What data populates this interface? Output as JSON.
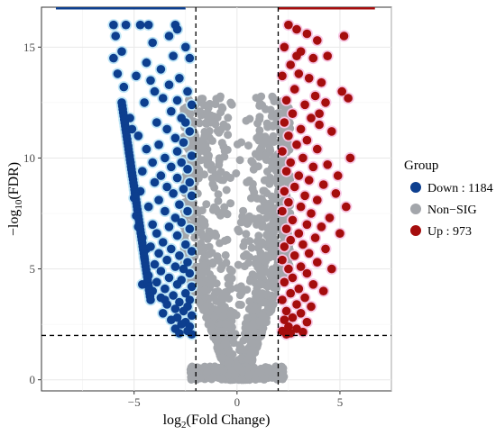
{
  "chart_data": {
    "type": "scatter",
    "title": "",
    "xlabel_main": "log",
    "xlabel_sub": "2",
    "xlabel_rest": "(Fold Change)",
    "ylabel_prefix": "−log",
    "ylabel_sub": "10",
    "ylabel_rest": "(FDR)",
    "xlim": [
      -9.5,
      7.5
    ],
    "ylim": [
      -0.5,
      16.8
    ],
    "x_ticks": [
      -5,
      0,
      5
    ],
    "x_tick_labels": [
      "−5",
      "0",
      "5"
    ],
    "y_ticks": [
      0,
      5,
      10,
      15
    ],
    "y_tick_labels": [
      "0",
      "5",
      "10",
      "15"
    ],
    "thresholds": {
      "log2fc": [
        -2,
        2
      ],
      "neg_log10_fdr": 2
    },
    "legend": {
      "title": "Group",
      "position": "right",
      "entries": [
        {
          "label": "Down : 1184",
          "color": "#0d3f8f"
        },
        {
          "label": "Non−SIG",
          "color": "#a3a6ab"
        },
        {
          "label": "Up : 973",
          "color": "#a50d0d"
        }
      ]
    },
    "series": [
      {
        "name": "Down : 1184",
        "color": "#0d3f8f",
        "halo": "#bfe6f7",
        "points": [
          [
            -6.0,
            16.0
          ],
          [
            -5.4,
            16.0
          ],
          [
            -4.7,
            16.0
          ],
          [
            -4.3,
            16.0
          ],
          [
            -3.0,
            16.0
          ],
          [
            -2.9,
            15.8
          ],
          [
            -5.9,
            15.5
          ],
          [
            -4.1,
            15.2
          ],
          [
            -3.3,
            15.5
          ],
          [
            -2.5,
            15.0
          ],
          [
            -6.0,
            14.5
          ],
          [
            -5.6,
            14.8
          ],
          [
            -4.4,
            14.3
          ],
          [
            -3.7,
            14.0
          ],
          [
            -3.1,
            14.6
          ],
          [
            -2.3,
            14.5
          ],
          [
            -5.8,
            13.8
          ],
          [
            -4.9,
            13.7
          ],
          [
            -4.2,
            13.5
          ],
          [
            -2.8,
            13.6
          ],
          [
            -5.5,
            13.2
          ],
          [
            -4.0,
            13.0
          ],
          [
            -3.3,
            13.3
          ],
          [
            -2.4,
            13.0
          ],
          [
            -3.6,
            12.7
          ],
          [
            -2.9,
            12.6
          ],
          [
            -2.2,
            12.4
          ],
          [
            -4.5,
            12.5
          ],
          [
            -3.2,
            12.1
          ],
          [
            -2.7,
            11.8
          ],
          [
            -5.2,
            11.8
          ],
          [
            -3.9,
            11.6
          ],
          [
            -2.5,
            11.6
          ],
          [
            -5.1,
            11.3
          ],
          [
            -3.4,
            11.3
          ],
          [
            -2.3,
            11.2
          ],
          [
            -4.8,
            11.0
          ],
          [
            -3.0,
            10.9
          ],
          [
            -2.6,
            10.7
          ],
          [
            -3.8,
            10.6
          ],
          [
            -4.4,
            10.4
          ],
          [
            -2.9,
            10.3
          ],
          [
            -2.2,
            10.1
          ],
          [
            -3.5,
            10.0
          ],
          [
            -4.1,
            9.8
          ],
          [
            -2.7,
            9.8
          ],
          [
            -3.2,
            9.6
          ],
          [
            -2.4,
            9.5
          ],
          [
            -4.6,
            9.4
          ],
          [
            -3.7,
            9.2
          ],
          [
            -2.9,
            9.1
          ],
          [
            -2.3,
            8.9
          ],
          [
            -4.0,
            8.9
          ],
          [
            -3.4,
            8.7
          ],
          [
            -2.6,
            8.6
          ],
          [
            -4.7,
            8.5
          ],
          [
            -3.1,
            8.4
          ],
          [
            -2.2,
            8.3
          ],
          [
            -3.8,
            8.1
          ],
          [
            -2.8,
            7.9
          ],
          [
            -4.3,
            7.8
          ],
          [
            -3.5,
            7.6
          ],
          [
            -2.4,
            7.6
          ],
          [
            -4.9,
            7.4
          ],
          [
            -3.0,
            7.3
          ],
          [
            -2.7,
            7.1
          ],
          [
            -4.1,
            7.0
          ],
          [
            -3.3,
            6.9
          ],
          [
            -2.3,
            6.8
          ],
          [
            -3.9,
            6.6
          ],
          [
            -2.9,
            6.5
          ],
          [
            -4.6,
            6.4
          ],
          [
            -3.6,
            6.2
          ],
          [
            -2.5,
            6.1
          ],
          [
            -4.2,
            6.0
          ],
          [
            -3.2,
            5.9
          ],
          [
            -2.2,
            5.8
          ],
          [
            -3.8,
            5.7
          ],
          [
            -2.8,
            5.6
          ],
          [
            -4.5,
            5.5
          ],
          [
            -3.4,
            5.4
          ],
          [
            -2.4,
            5.3
          ],
          [
            -4.0,
            5.2
          ],
          [
            -3.0,
            5.1
          ],
          [
            -2.6,
            5.0
          ],
          [
            -3.7,
            4.9
          ],
          [
            -2.3,
            4.8
          ],
          [
            -4.3,
            4.7
          ],
          [
            -3.3,
            4.6
          ],
          [
            -2.7,
            4.5
          ],
          [
            -3.9,
            4.4
          ],
          [
            -2.9,
            4.3
          ],
          [
            -2.2,
            4.2
          ],
          [
            -3.5,
            4.1
          ],
          [
            -4.1,
            4.0
          ],
          [
            -2.5,
            3.9
          ],
          [
            -3.1,
            3.8
          ],
          [
            -3.7,
            3.7
          ],
          [
            -2.3,
            3.6
          ],
          [
            -2.8,
            3.5
          ],
          [
            -3.4,
            3.4
          ],
          [
            -2.4,
            3.3
          ],
          [
            -3.0,
            3.2
          ],
          [
            -2.6,
            3.1
          ],
          [
            -3.6,
            3.0
          ],
          [
            -2.2,
            2.9
          ],
          [
            -2.9,
            2.8
          ],
          [
            -3.2,
            2.7
          ],
          [
            -2.5,
            2.6
          ],
          [
            -2.7,
            2.5
          ],
          [
            -2.3,
            2.4
          ],
          [
            -3.0,
            2.3
          ],
          [
            -2.4,
            2.2
          ],
          [
            -2.8,
            2.1
          ],
          [
            -2.2,
            2.05
          ],
          [
            -4.8,
            6.9
          ],
          [
            -4.4,
            5.9
          ],
          [
            -5.0,
            8.2
          ],
          [
            -4.6,
            4.3
          ],
          [
            -3.5,
            3.6
          ]
        ],
        "curve": {
          "x_start": -5.6,
          "y_start": 12.5,
          "x_end": -4.2,
          "y_end": 3.6,
          "count": 60
        }
      },
      {
        "name": "Up : 973",
        "color": "#a50d0d",
        "halo": "#f7c6e4",
        "points": [
          [
            2.5,
            16.0
          ],
          [
            2.9,
            15.8
          ],
          [
            3.4,
            15.6
          ],
          [
            3.9,
            15.3
          ],
          [
            5.2,
            15.5
          ],
          [
            2.3,
            15.0
          ],
          [
            3.1,
            14.8
          ],
          [
            3.7,
            14.5
          ],
          [
            4.4,
            14.6
          ],
          [
            2.6,
            14.2
          ],
          [
            2.2,
            13.7
          ],
          [
            3.0,
            13.8
          ],
          [
            3.5,
            13.6
          ],
          [
            4.1,
            13.4
          ],
          [
            2.8,
            13.1
          ],
          [
            3.8,
            12.8
          ],
          [
            2.4,
            12.6
          ],
          [
            3.3,
            12.4
          ],
          [
            5.4,
            12.7
          ],
          [
            4.3,
            12.5
          ],
          [
            2.7,
            12.0
          ],
          [
            3.6,
            11.8
          ],
          [
            2.3,
            11.6
          ],
          [
            4.0,
            11.5
          ],
          [
            3.1,
            11.3
          ],
          [
            2.5,
            11.0
          ],
          [
            3.4,
            10.8
          ],
          [
            4.6,
            11.2
          ],
          [
            2.9,
            10.6
          ],
          [
            3.9,
            10.4
          ],
          [
            2.2,
            10.3
          ],
          [
            5.5,
            10.0
          ],
          [
            3.2,
            10.0
          ],
          [
            2.6,
            9.8
          ],
          [
            3.7,
            9.6
          ],
          [
            4.4,
            9.7
          ],
          [
            2.4,
            9.4
          ],
          [
            3.0,
            9.2
          ],
          [
            3.5,
            9.0
          ],
          [
            4.2,
            8.8
          ],
          [
            2.8,
            8.7
          ],
          [
            2.3,
            8.5
          ],
          [
            3.3,
            8.3
          ],
          [
            3.9,
            8.1
          ],
          [
            4.8,
            8.4
          ],
          [
            2.5,
            8.0
          ],
          [
            3.1,
            7.8
          ],
          [
            2.2,
            7.6
          ],
          [
            3.6,
            7.5
          ],
          [
            4.5,
            7.3
          ],
          [
            2.7,
            7.2
          ],
          [
            3.4,
            7.0
          ],
          [
            4.1,
            6.9
          ],
          [
            2.4,
            6.8
          ],
          [
            3.0,
            6.6
          ],
          [
            3.8,
            6.4
          ],
          [
            5.0,
            6.6
          ],
          [
            2.6,
            6.3
          ],
          [
            3.2,
            6.1
          ],
          [
            2.3,
            6.0
          ],
          [
            4.3,
            5.9
          ],
          [
            3.5,
            5.7
          ],
          [
            2.8,
            5.6
          ],
          [
            2.2,
            5.4
          ],
          [
            3.9,
            5.3
          ],
          [
            3.1,
            5.1
          ],
          [
            2.5,
            5.0
          ],
          [
            4.6,
            5.0
          ],
          [
            3.4,
            4.8
          ],
          [
            2.7,
            4.6
          ],
          [
            2.3,
            4.4
          ],
          [
            3.7,
            4.3
          ],
          [
            3.0,
            4.1
          ],
          [
            4.2,
            4.0
          ],
          [
            2.6,
            3.9
          ],
          [
            3.3,
            3.7
          ],
          [
            2.2,
            3.6
          ],
          [
            2.9,
            3.4
          ],
          [
            3.6,
            3.3
          ],
          [
            2.4,
            3.1
          ],
          [
            3.1,
            3.0
          ],
          [
            2.7,
            2.8
          ],
          [
            2.3,
            2.7
          ],
          [
            3.4,
            2.6
          ],
          [
            2.5,
            2.4
          ],
          [
            2.9,
            2.3
          ],
          [
            2.2,
            2.2
          ],
          [
            3.2,
            2.15
          ],
          [
            2.6,
            2.1
          ],
          [
            2.4,
            2.05
          ],
          [
            4.9,
            9.2
          ],
          [
            5.3,
            7.8
          ],
          [
            4.0,
            12.0
          ],
          [
            2.9,
            14.6
          ],
          [
            5.1,
            13.0
          ]
        ]
      },
      {
        "name": "Non−SIG",
        "color": "#a3a6ab",
        "shape": "v-funnel",
        "x_range": [
          -2.6,
          2.6
        ],
        "y_range": [
          0,
          12.8
        ]
      }
    ]
  }
}
